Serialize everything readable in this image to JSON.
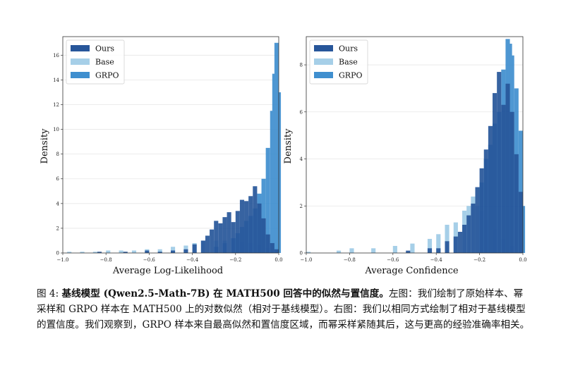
{
  "chart_data": [
    {
      "type": "histogram",
      "title": "",
      "xlabel": "Average Log-Likelihood",
      "ylabel": "Density",
      "xlim": [
        -1.0,
        0.0
      ],
      "ylim": [
        0,
        17.5
      ],
      "xticks": [
        "−1.0",
        "−0.8",
        "−0.6",
        "−0.4",
        "−0.2",
        "0.0"
      ],
      "yticks": [
        "0",
        "2",
        "4",
        "6",
        "8",
        "10",
        "12",
        "14",
        "16"
      ],
      "legend": [
        "Ours",
        "Base",
        "GRPO"
      ],
      "legend_position": "top-left",
      "bin_width": 0.02,
      "series": [
        {
          "name": "Base",
          "color": "#a6cfe8",
          "bins": [
            {
              "x0": -0.98,
              "y": 0.1
            },
            {
              "x0": -0.92,
              "y": 0.1
            },
            {
              "x0": -0.86,
              "y": 0.1
            },
            {
              "x0": -0.8,
              "y": 0.2
            },
            {
              "x0": -0.74,
              "y": 0.2
            },
            {
              "x0": -0.68,
              "y": 0.2
            },
            {
              "x0": -0.62,
              "y": 0.3
            },
            {
              "x0": -0.56,
              "y": 0.3
            },
            {
              "x0": -0.5,
              "y": 0.5
            },
            {
              "x0": -0.44,
              "y": 0.6
            },
            {
              "x0": -0.4,
              "y": 0.8
            },
            {
              "x0": -0.36,
              "y": 1.0
            },
            {
              "x0": -0.3,
              "y": 1.0
            },
            {
              "x0": -0.26,
              "y": 1.0
            },
            {
              "x0": -0.22,
              "y": 1.1
            },
            {
              "x0": -0.18,
              "y": 0.9
            },
            {
              "x0": -0.14,
              "y": 0.8
            },
            {
              "x0": -0.1,
              "y": 0.6
            },
            {
              "x0": -0.06,
              "y": 0.4
            },
            {
              "x0": -0.02,
              "y": 0.2
            }
          ]
        },
        {
          "name": "GRPO",
          "color": "#3f8fcf",
          "bins": [
            {
              "x0": -0.3,
              "y": 0.5
            },
            {
              "x0": -0.26,
              "y": 0.8
            },
            {
              "x0": -0.22,
              "y": 1.2
            },
            {
              "x0": -0.2,
              "y": 1.6
            },
            {
              "x0": -0.18,
              "y": 2.1
            },
            {
              "x0": -0.16,
              "y": 2.6
            },
            {
              "x0": -0.14,
              "y": 3.0
            },
            {
              "x0": -0.12,
              "y": 3.6
            },
            {
              "x0": -0.1,
              "y": 4.8
            },
            {
              "x0": -0.08,
              "y": 6.0
            },
            {
              "x0": -0.06,
              "y": 8.5
            },
            {
              "x0": -0.04,
              "y": 11.5
            },
            {
              "x0": -0.03,
              "y": 14.5
            },
            {
              "x0": -0.02,
              "y": 17.0
            },
            {
              "x0": -0.01,
              "y": 13.0
            }
          ]
        },
        {
          "name": "Ours",
          "color": "#27569a",
          "bins": [
            {
              "x0": -0.84,
              "y": 0.1
            },
            {
              "x0": -0.72,
              "y": 0.1
            },
            {
              "x0": -0.62,
              "y": 0.2
            },
            {
              "x0": -0.56,
              "y": 0.1
            },
            {
              "x0": -0.5,
              "y": 0.2
            },
            {
              "x0": -0.44,
              "y": 0.3
            },
            {
              "x0": -0.4,
              "y": 0.7
            },
            {
              "x0": -0.36,
              "y": 1.0
            },
            {
              "x0": -0.34,
              "y": 1.4
            },
            {
              "x0": -0.32,
              "y": 1.9
            },
            {
              "x0": -0.3,
              "y": 2.6
            },
            {
              "x0": -0.28,
              "y": 2.4
            },
            {
              "x0": -0.26,
              "y": 2.9
            },
            {
              "x0": -0.24,
              "y": 3.3
            },
            {
              "x0": -0.22,
              "y": 2.5
            },
            {
              "x0": -0.2,
              "y": 3.4
            },
            {
              "x0": -0.18,
              "y": 4.3
            },
            {
              "x0": -0.16,
              "y": 4.2
            },
            {
              "x0": -0.14,
              "y": 4.6
            },
            {
              "x0": -0.12,
              "y": 5.4
            },
            {
              "x0": -0.1,
              "y": 4.0
            },
            {
              "x0": -0.08,
              "y": 2.8
            },
            {
              "x0": -0.06,
              "y": 1.5
            },
            {
              "x0": -0.04,
              "y": 0.8
            },
            {
              "x0": -0.02,
              "y": 0.3
            }
          ]
        }
      ]
    },
    {
      "type": "histogram",
      "title": "",
      "xlabel": "Average Confidence",
      "ylabel": "Density",
      "xlim": [
        -1.0,
        0.0
      ],
      "ylim": [
        0,
        9.2
      ],
      "xticks": [
        "−1.0",
        "−0.8",
        "−0.6",
        "−0.4",
        "−0.2",
        "0.0"
      ],
      "yticks": [
        "0",
        "2",
        "4",
        "6",
        "8"
      ],
      "legend": [
        "Ours",
        "Base",
        "GRPO"
      ],
      "legend_position": "top-left",
      "bin_width": 0.02,
      "series": [
        {
          "name": "Base",
          "color": "#a6cfe8",
          "bins": [
            {
              "x0": -1.0,
              "y": 0.05
            },
            {
              "x0": -0.86,
              "y": 0.1
            },
            {
              "x0": -0.8,
              "y": 0.2
            },
            {
              "x0": -0.7,
              "y": 0.2
            },
            {
              "x0": -0.6,
              "y": 0.3
            },
            {
              "x0": -0.52,
              "y": 0.4
            },
            {
              "x0": -0.44,
              "y": 0.6
            },
            {
              "x0": -0.4,
              "y": 0.8
            },
            {
              "x0": -0.36,
              "y": 1.2
            },
            {
              "x0": -0.32,
              "y": 1.3
            },
            {
              "x0": -0.28,
              "y": 1.8
            },
            {
              "x0": -0.26,
              "y": 2.0
            },
            {
              "x0": -0.24,
              "y": 2.4
            },
            {
              "x0": -0.22,
              "y": 2.0
            },
            {
              "x0": -0.2,
              "y": 1.8
            },
            {
              "x0": -0.18,
              "y": 1.4
            },
            {
              "x0": -0.14,
              "y": 1.0
            },
            {
              "x0": -0.1,
              "y": 0.6
            },
            {
              "x0": -0.06,
              "y": 0.3
            }
          ]
        },
        {
          "name": "GRPO",
          "color": "#3f8fcf",
          "bins": [
            {
              "x0": -0.2,
              "y": 3.0
            },
            {
              "x0": -0.18,
              "y": 4.0
            },
            {
              "x0": -0.16,
              "y": 4.6
            },
            {
              "x0": -0.14,
              "y": 5.5
            },
            {
              "x0": -0.12,
              "y": 6.0
            },
            {
              "x0": -0.1,
              "y": 7.8
            },
            {
              "x0": -0.08,
              "y": 9.1
            },
            {
              "x0": -0.07,
              "y": 8.9
            },
            {
              "x0": -0.06,
              "y": 8.4
            },
            {
              "x0": -0.04,
              "y": 7.0
            },
            {
              "x0": -0.02,
              "y": 5.2
            },
            {
              "x0": -0.01,
              "y": 2.0
            }
          ]
        },
        {
          "name": "Ours",
          "color": "#27569a",
          "bins": [
            {
              "x0": -0.54,
              "y": 0.1
            },
            {
              "x0": -0.44,
              "y": 0.2
            },
            {
              "x0": -0.4,
              "y": 0.2
            },
            {
              "x0": -0.36,
              "y": 0.5
            },
            {
              "x0": -0.32,
              "y": 0.7
            },
            {
              "x0": -0.3,
              "y": 0.9
            },
            {
              "x0": -0.28,
              "y": 1.2
            },
            {
              "x0": -0.26,
              "y": 1.6
            },
            {
              "x0": -0.24,
              "y": 2.1
            },
            {
              "x0": -0.22,
              "y": 2.8
            },
            {
              "x0": -0.2,
              "y": 3.6
            },
            {
              "x0": -0.18,
              "y": 4.4
            },
            {
              "x0": -0.16,
              "y": 5.4
            },
            {
              "x0": -0.14,
              "y": 6.8
            },
            {
              "x0": -0.12,
              "y": 7.7
            },
            {
              "x0": -0.1,
              "y": 6.3
            },
            {
              "x0": -0.08,
              "y": 7.2
            },
            {
              "x0": -0.06,
              "y": 6.0
            },
            {
              "x0": -0.04,
              "y": 4.2
            },
            {
              "x0": -0.02,
              "y": 2.6
            }
          ]
        }
      ]
    }
  ],
  "caption": {
    "label": "图 4:",
    "bold_text": "基线模型 (Qwen2.5-Math-7B) 在 MATH500 回答中的似然与置信度。",
    "body_text": "左图：我们绘制了原始样本、幂采样和 GRPO 样本在 MATH500 上的对数似然（相对于基线模型）。右图：我们以相同方式绘制了相对于基线模型的置信度。我们观察到，GRPO 样本来自最高似然和置信度区域，而幂采样紧随其后，这与更高的经验准确率相关。"
  }
}
